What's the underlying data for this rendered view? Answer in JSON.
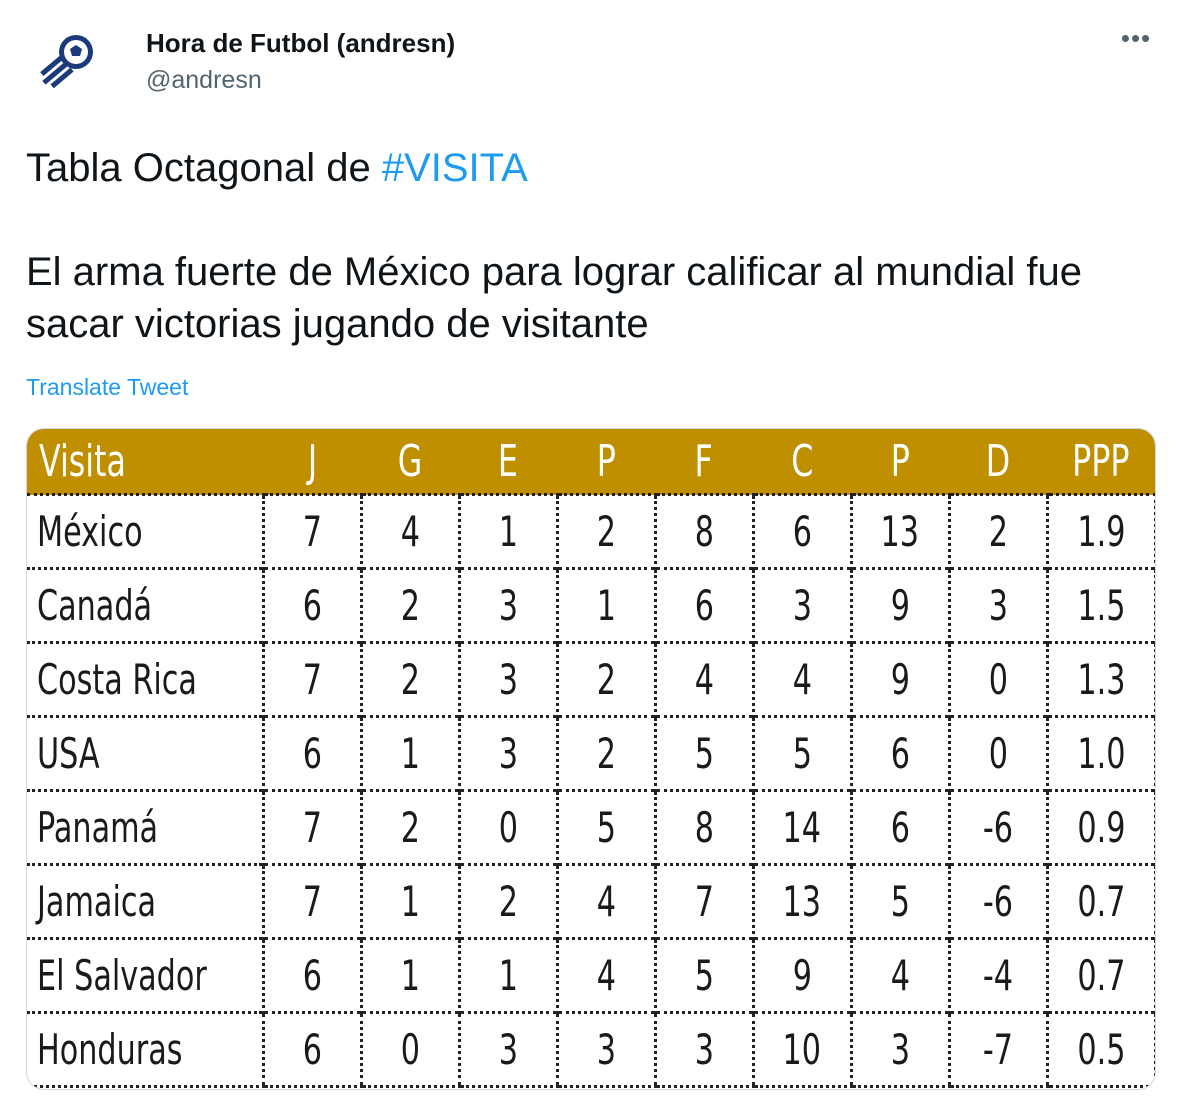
{
  "tweet": {
    "display_name": "Hora de Futbol (andresn)",
    "handle": "@andresn",
    "more_icon": "more-dots-icon",
    "text_prefix": "Tabla Octagonal de ",
    "hashtag": "#VISITA",
    "text_body": "El arma fuerte de México para lograr calificar al mundial fue sacar victorias jugando de visitante",
    "translate_label": "Translate Tweet"
  },
  "colors": {
    "header_gold": "#c08f00",
    "link_blue": "#1d9bf0",
    "avatar_blue": "#1a3a7a"
  },
  "table": {
    "columns": [
      "Visita",
      "J",
      "G",
      "E",
      "P",
      "F",
      "C",
      "P",
      "D",
      "PPP"
    ],
    "rows": [
      [
        "México",
        "7",
        "4",
        "1",
        "2",
        "8",
        "6",
        "13",
        "2",
        "1.9"
      ],
      [
        "Canadá",
        "6",
        "2",
        "3",
        "1",
        "6",
        "3",
        "9",
        "3",
        "1.5"
      ],
      [
        "Costa Rica",
        "7",
        "2",
        "3",
        "2",
        "4",
        "4",
        "9",
        "0",
        "1.3"
      ],
      [
        "USA",
        "6",
        "1",
        "3",
        "2",
        "5",
        "5",
        "6",
        "0",
        "1.0"
      ],
      [
        "Panamá",
        "7",
        "2",
        "0",
        "5",
        "8",
        "14",
        "6",
        "-6",
        "0.9"
      ],
      [
        "Jamaica",
        "7",
        "1",
        "2",
        "4",
        "7",
        "13",
        "5",
        "-6",
        "0.7"
      ],
      [
        "El Salvador",
        "6",
        "1",
        "1",
        "4",
        "5",
        "9",
        "4",
        "-4",
        "0.7"
      ],
      [
        "Honduras",
        "6",
        "0",
        "3",
        "3",
        "3",
        "10",
        "3",
        "-7",
        "0.5"
      ]
    ]
  }
}
